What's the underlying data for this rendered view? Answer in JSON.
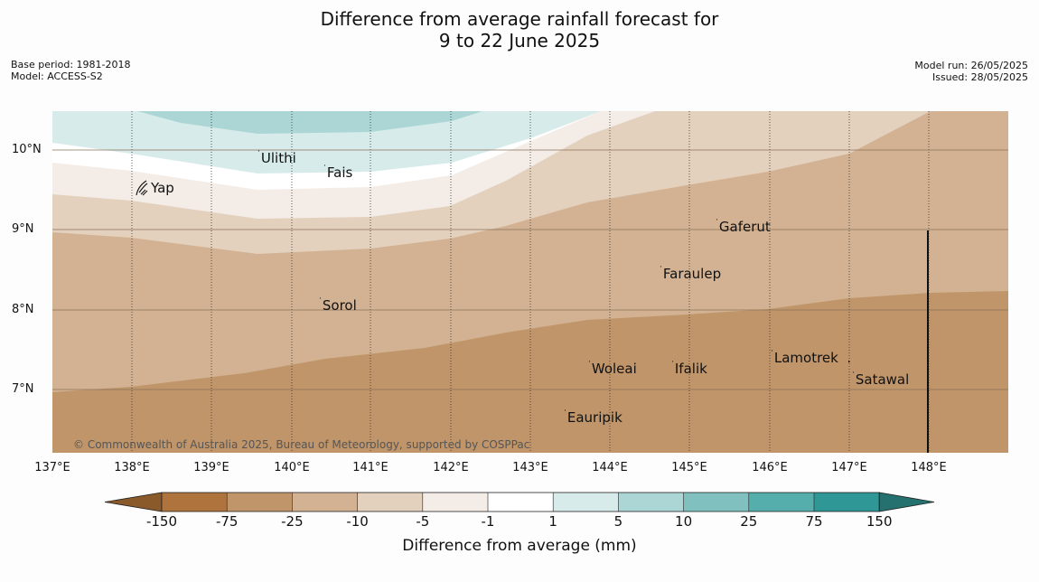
{
  "title_line1": "Difference from average rainfall forecast for",
  "title_line2": "9 to 22 June 2025",
  "base_period": "Base period: 1981-2018",
  "model": "Model: ACCESS-S2",
  "model_run": "Model run: 26/05/2025",
  "issued": "Issued: 28/05/2025",
  "latitudes": [
    "10°N",
    "9°N",
    "8°N",
    "7°N"
  ],
  "longitudes": [
    "137°E",
    "138°E",
    "139°E",
    "140°E",
    "141°E",
    "142°E",
    "143°E",
    "144°E",
    "145°E",
    "146°E",
    "147°E",
    "148°E"
  ],
  "places": [
    "Ulithi",
    "Fais",
    "Yap",
    "Gaferut",
    "Faraulep",
    "Sorol",
    "Woleai",
    "Ifalik",
    "Lamotrek",
    "Satawal",
    "Eauripik"
  ],
  "copyright": "© Commonwealth of Australia 2025, Bureau of Meteorology, supported by COSPPac",
  "colorbar": {
    "title": "Difference from average (mm)",
    "labels": [
      "-150",
      "-75",
      "-25",
      "-10",
      "-5",
      "-1",
      "1",
      "5",
      "10",
      "25",
      "75",
      "150"
    ],
    "colors": [
      "#8b5a2b",
      "#af743d",
      "#c0956a",
      "#d2b292",
      "#e3d0bd",
      "#f4ece6",
      "#ffffff",
      "#d7ebea",
      "#abd6d5",
      "#80c1bf",
      "#55aeac",
      "#2f9896",
      "#25716f"
    ]
  },
  "legend_icon": "crab-icon"
}
